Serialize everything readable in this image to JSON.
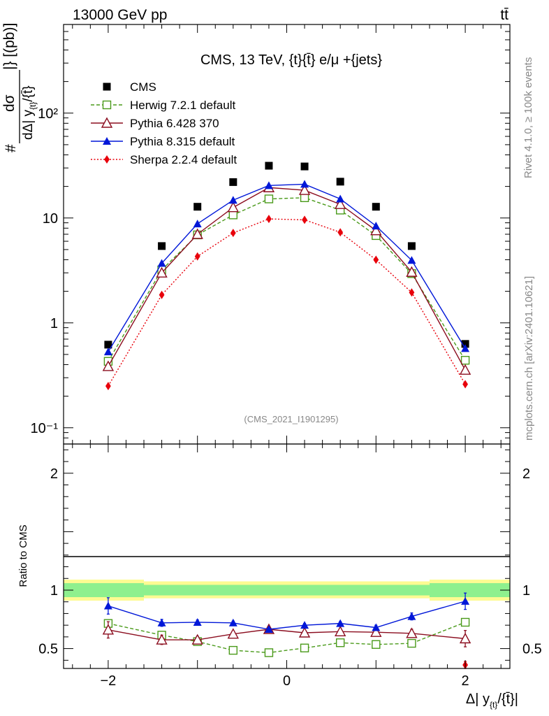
{
  "header": {
    "left": "13000 GeV pp",
    "right": "tt̄"
  },
  "side": {
    "rivet": "Rivet 4.1.0, ≥ 100k events",
    "mcplots": "mcplots.cern.ch [arXiv:2401.10621]"
  },
  "chart_data": {
    "type": "scatter",
    "title": "CMS, 13 TeV, {t}{t̄} e/μ +{jets}",
    "watermark": "(CMS_2021_I1901295)",
    "xlabel": "Δ| y_{t}/{t̄}|",
    "ylabel_main": "dσ/dΔ| y_{t}/{t̄}|} [(pb)]",
    "ylabel_main_parts": {
      "hash": "#",
      "num": "dσ",
      "den_prefix": "dΔ| y",
      "den_sub": "{t}",
      "den_suffix": "/{t̄}",
      "units": "|} [(pb)]"
    },
    "ylabel_ratio": "Ratio to CMS",
    "x": [
      -2.0,
      -1.4,
      -1.0,
      -0.6,
      -0.2,
      0.2,
      0.6,
      1.0,
      1.4,
      2.0
    ],
    "xlim": [
      -2.5,
      2.5
    ],
    "ylim_main": [
      0.07,
      700
    ],
    "yscale_main": "log",
    "ylim_ratio": [
      0.33,
      2.25
    ],
    "x_ticks": [
      {
        "v": -2,
        "label": "−2"
      },
      {
        "v": 0,
        "label": "0"
      },
      {
        "v": 2,
        "label": "2"
      }
    ],
    "y_ticks_main": [
      {
        "v": 0.1,
        "label": "10⁻¹"
      },
      {
        "v": 1,
        "label": "1"
      },
      {
        "v": 10,
        "label": "10"
      },
      {
        "v": 100,
        "label": "10²"
      }
    ],
    "y_ticks_ratio": [
      {
        "v": 0.5,
        "label": "0.5"
      },
      {
        "v": 1,
        "label": "1"
      },
      {
        "v": 2,
        "label": "2"
      }
    ],
    "data_band": {
      "edges": [
        -2.5,
        -1.6,
        1.6,
        2.5
      ],
      "yellow": [
        [
          0.91,
          1.09
        ],
        [
          0.93,
          1.075
        ],
        [
          0.91,
          1.09
        ]
      ],
      "green": [
        [
          0.94,
          1.06
        ],
        [
          0.955,
          1.045
        ],
        [
          0.94,
          1.06
        ]
      ]
    },
    "series": [
      {
        "name": "CMS",
        "color": "#000000",
        "marker": "square-filled",
        "line": "none",
        "values": [
          0.62,
          5.4,
          12.8,
          22.0,
          31.5,
          31.0,
          22.2,
          12.8,
          5.4,
          0.63
        ]
      },
      {
        "name": "Herwig 7.2.1 default",
        "color": "#4a9a1a",
        "marker": "square-open",
        "line": "dashed",
        "values": [
          0.43,
          3.2,
          6.9,
          10.7,
          15.2,
          15.6,
          11.9,
          6.8,
          2.95,
          0.44
        ],
        "ratio": [
          0.715,
          0.615,
          0.56,
          0.485,
          0.465,
          0.505,
          0.55,
          0.535,
          0.545,
          0.725
        ],
        "ratio_err": [
          0.025,
          0.025,
          0.02,
          0.015,
          0.015,
          0.015,
          0.02,
          0.02,
          0.03,
          0.03
        ]
      },
      {
        "name": "Pythia 6.428 370",
        "color": "#8b0d1f",
        "marker": "triangle-open",
        "line": "solid",
        "values": [
          0.385,
          3.0,
          7.0,
          12.6,
          19.5,
          18.4,
          13.5,
          7.6,
          3.05,
          0.355
        ],
        "ratio": [
          0.66,
          0.575,
          0.575,
          0.625,
          0.665,
          0.635,
          0.645,
          0.64,
          0.63,
          0.585
        ],
        "ratio_err": [
          0.07,
          0.04,
          0.03,
          0.02,
          0.015,
          0.02,
          0.025,
          0.03,
          0.035,
          0.07
        ]
      },
      {
        "name": "Pythia 8.315 default",
        "color": "#0017d8",
        "marker": "triangle-filled",
        "line": "solid",
        "values": [
          0.53,
          3.7,
          8.8,
          14.8,
          20.4,
          21.0,
          15.2,
          8.4,
          3.95,
          0.57
        ],
        "ratio": [
          0.865,
          0.72,
          0.725,
          0.72,
          0.665,
          0.7,
          0.715,
          0.68,
          0.775,
          0.905
        ],
        "ratio_err": [
          0.07,
          0.03,
          0.02,
          0.015,
          0.015,
          0.015,
          0.015,
          0.02,
          0.03,
          0.07
        ]
      },
      {
        "name": "Sherpa 2.2.4 default",
        "color": "#e8000b",
        "marker": "diamond-filled",
        "line": "dotted",
        "values": [
          0.25,
          1.85,
          4.3,
          7.2,
          9.8,
          9.6,
          7.3,
          4.0,
          1.95,
          0.26
        ],
        "ratio": [
          null,
          null,
          null,
          null,
          null,
          null,
          null,
          null,
          null,
          0.36
        ],
        "ratio_err": [
          0,
          0,
          0,
          0,
          0,
          0,
          0,
          0,
          0,
          0.03
        ]
      }
    ]
  }
}
